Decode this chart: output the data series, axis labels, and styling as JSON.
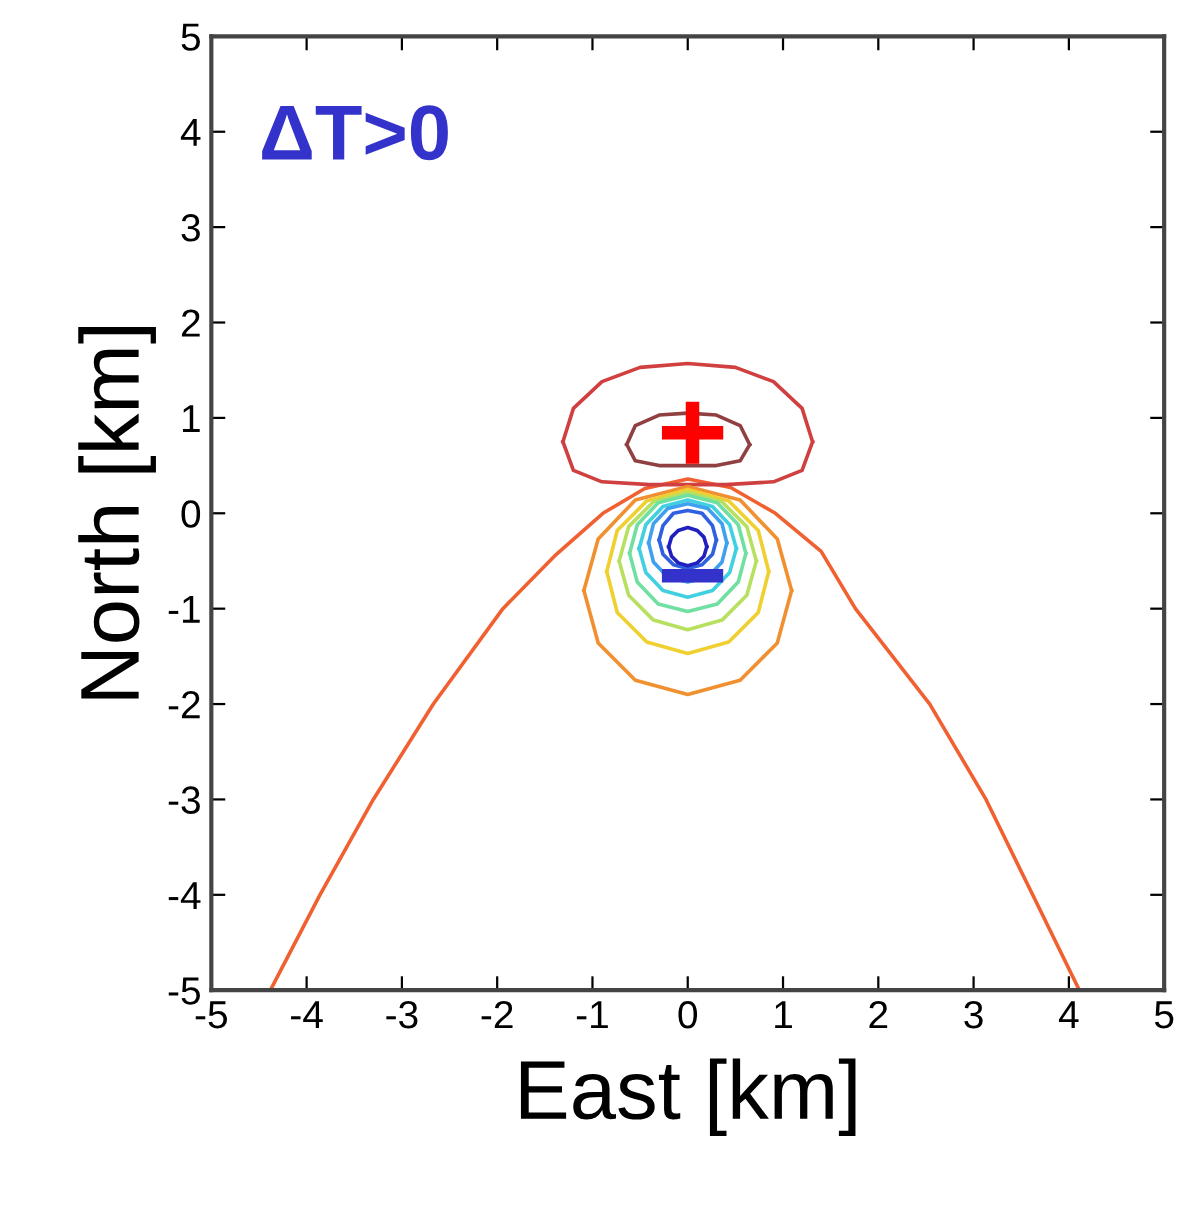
{
  "chart_data": {
    "type": "line",
    "xlabel": "East [km]",
    "ylabel": "North [km]",
    "xlim": [
      -5,
      5
    ],
    "ylim": [
      -5,
      5
    ],
    "xticks": [
      -5,
      -4,
      -3,
      -2,
      -1,
      0,
      1,
      2,
      3,
      4,
      5
    ],
    "yticks": [
      -5,
      -4,
      -3,
      -2,
      -1,
      0,
      1,
      2,
      3,
      4,
      5
    ],
    "grid": false,
    "legend": false,
    "marker": "none",
    "line_style": "solid",
    "annotations": [
      "ΔT>0",
      "+",
      "−"
    ],
    "series": [
      {
        "color": "#f06030",
        "x": [
          -4.38,
          -3.86,
          -3.3,
          -2.67,
          -1.94,
          -1.4,
          -0.89,
          -0.45,
          0,
          0.45,
          0.92,
          1.4,
          1.76,
          2.54,
          3.13,
          3.62,
          4.11
        ],
        "values": [
          -5,
          -4,
          -3,
          -2,
          -1,
          -0.45,
          0,
          0.26,
          0.36,
          0.27,
          0,
          -0.4,
          -1,
          -2,
          -3,
          -4,
          -5
        ]
      },
      {
        "color": "#d04040",
        "x": [
          -1.31,
          -1.2,
          -0.9,
          -0.5,
          0,
          0.5,
          0.9,
          1.2,
          1.31
        ],
        "values": [
          0.75,
          1.1,
          1.38,
          1.53,
          1.57,
          1.53,
          1.38,
          1.1,
          0.75
        ]
      },
      {
        "color": "#d04040",
        "x": [
          -1.31,
          -1.2,
          -0.9,
          -0.4,
          0,
          0.4,
          0.9,
          1.2,
          1.31
        ],
        "values": [
          0.75,
          0.45,
          0.33,
          0.3,
          0.3,
          0.3,
          0.33,
          0.45,
          0.75
        ]
      },
      {
        "color": "#904040",
        "x": [
          -0.64,
          -0.55,
          -0.3,
          0,
          0.3,
          0.55,
          0.65
        ],
        "values": [
          0.72,
          0.92,
          1.03,
          1.05,
          1.03,
          0.92,
          0.72
        ]
      },
      {
        "color": "#904040",
        "x": [
          -0.64,
          -0.55,
          -0.3,
          0,
          0.3,
          0.55,
          0.65
        ],
        "values": [
          0.72,
          0.55,
          0.5,
          0.5,
          0.5,
          0.55,
          0.72
        ]
      },
      {
        "color": "#f09030",
        "x": [
          -1.09,
          -0.94,
          -0.55,
          0,
          0.55,
          0.94,
          1.09
        ],
        "values": [
          -0.81,
          -0.27,
          0.14,
          0.28,
          0.14,
          -0.27,
          -0.81
        ]
      },
      {
        "color": "#f09030",
        "x": [
          -1.09,
          -0.94,
          -0.55,
          0,
          0.55,
          0.94,
          1.09
        ],
        "values": [
          -0.81,
          -1.36,
          -1.75,
          -1.9,
          -1.75,
          -1.36,
          -0.81
        ]
      },
      {
        "color": "#f0d030",
        "x": [
          -0.85,
          -0.74,
          -0.43,
          0,
          0.43,
          0.74,
          0.85
        ],
        "values": [
          -0.61,
          -0.18,
          0.13,
          0.25,
          0.13,
          -0.18,
          -0.61
        ]
      },
      {
        "color": "#f0d030",
        "x": [
          -0.85,
          -0.74,
          -0.43,
          0,
          0.43,
          0.74,
          0.85
        ],
        "values": [
          -0.61,
          -1.04,
          -1.35,
          -1.47,
          -1.35,
          -1.04,
          -0.61
        ]
      },
      {
        "color": "#b8e060",
        "x": [
          -0.72,
          -0.62,
          -0.36,
          0,
          0.36,
          0.62,
          0.72
        ],
        "values": [
          -0.5,
          -0.14,
          0.12,
          0.22,
          0.12,
          -0.14,
          -0.5
        ]
      },
      {
        "color": "#b8e060",
        "x": [
          -0.72,
          -0.62,
          -0.36,
          0,
          0.36,
          0.62,
          0.72
        ],
        "values": [
          -0.5,
          -0.86,
          -1.12,
          -1.22,
          -1.12,
          -0.86,
          -0.5
        ]
      },
      {
        "color": "#70e0a0",
        "x": [
          -0.61,
          -0.53,
          -0.31,
          0,
          0.31,
          0.53,
          0.61
        ],
        "values": [
          -0.42,
          -0.12,
          0.11,
          0.19,
          0.11,
          -0.12,
          -0.42
        ]
      },
      {
        "color": "#70e0a0",
        "x": [
          -0.61,
          -0.53,
          -0.31,
          0,
          0.31,
          0.53,
          0.61
        ],
        "values": [
          -0.42,
          -0.72,
          -0.95,
          -1.03,
          -0.95,
          -0.72,
          -0.42
        ]
      },
      {
        "color": "#40d0e0",
        "x": [
          -0.51,
          -0.44,
          -0.26,
          0,
          0.26,
          0.44,
          0.51
        ],
        "values": [
          -0.37,
          -0.12,
          0.07,
          0.14,
          0.07,
          -0.12,
          -0.37
        ]
      },
      {
        "color": "#40d0e0",
        "x": [
          -0.51,
          -0.44,
          -0.26,
          0,
          0.26,
          0.44,
          0.51
        ],
        "values": [
          -0.37,
          -0.62,
          -0.81,
          -0.88,
          -0.81,
          -0.62,
          -0.37
        ]
      },
      {
        "color": "#40a0f0",
        "x": [
          -0.41,
          -0.36,
          -0.21,
          0,
          0.21,
          0.36,
          0.41
        ],
        "values": [
          -0.31,
          -0.11,
          0.05,
          0.1,
          0.05,
          -0.11,
          -0.31
        ]
      },
      {
        "color": "#40a0f0",
        "x": [
          -0.41,
          -0.36,
          -0.21,
          0,
          0.21,
          0.36,
          0.41
        ],
        "values": [
          -0.31,
          -0.51,
          -0.67,
          -0.72,
          -0.67,
          -0.51,
          -0.31
        ]
      },
      {
        "color": "#3060e0",
        "x": [
          -0.3,
          -0.26,
          -0.15,
          0,
          0.15,
          0.26,
          0.3
        ],
        "values": [
          -0.28,
          -0.13,
          0,
          0.03,
          0,
          -0.13,
          -0.28
        ]
      },
      {
        "color": "#3060e0",
        "x": [
          -0.3,
          -0.26,
          -0.15,
          0,
          0.15,
          0.26,
          0.3
        ],
        "values": [
          -0.28,
          -0.43,
          -0.54,
          -0.58,
          -0.54,
          -0.43,
          -0.28
        ]
      },
      {
        "color": "#2020c0",
        "x": [
          -0.2,
          -0.17,
          -0.1,
          0,
          0.1,
          0.17,
          0.2
        ],
        "values": [
          -0.35,
          -0.25,
          -0.18,
          -0.15,
          -0.18,
          -0.25,
          -0.35
        ]
      },
      {
        "color": "#2020c0",
        "x": [
          -0.2,
          -0.17,
          -0.1,
          0,
          0.1,
          0.17,
          0.2
        ],
        "values": [
          -0.35,
          -0.45,
          -0.52,
          -0.55,
          -0.52,
          -0.45,
          -0.35
        ]
      }
    ]
  }
}
